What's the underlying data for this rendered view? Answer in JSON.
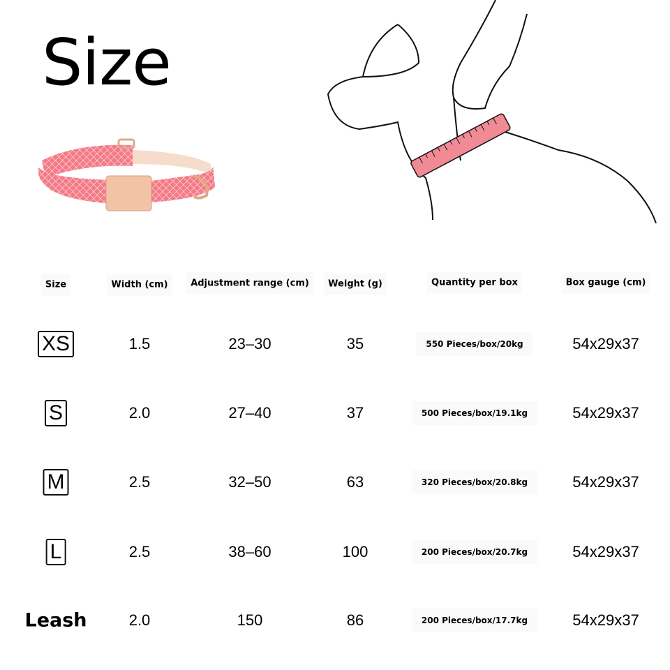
{
  "title": "Size",
  "table": {
    "headers": [
      "Size",
      "Width (cm)",
      "Adjustment range (cm)",
      "Weight (g)",
      "Quantity per box",
      "Box gauge (cm)"
    ],
    "rows": [
      {
        "size": "XS",
        "width": "1.5",
        "range": "23–30",
        "weight": "35",
        "quantity": "550 Pieces/box/20kg",
        "box": "54x29x37"
      },
      {
        "size": "S",
        "width": "2.0",
        "range": "27–40",
        "weight": "37",
        "quantity": "500 Pieces/box/19.1kg",
        "box": "54x29x37"
      },
      {
        "size": "M",
        "width": "2.5",
        "range": "32–50",
        "weight": "63",
        "quantity": "320 Pieces/box/20.8kg",
        "box": "54x29x37"
      },
      {
        "size": "L",
        "width": "2.5",
        "range": "38–60",
        "weight": "100",
        "quantity": "200 Pieces/box/20.7kg",
        "box": "54x29x37"
      },
      {
        "size": "Leash",
        "width": "2.0",
        "range": "150",
        "weight": "86",
        "quantity": "200 Pieces/box/17.7kg",
        "box": "54x29x37"
      }
    ]
  },
  "colors": {
    "collar_pink": "#f47a86",
    "buckle": "#f3c3a8",
    "tape": "#f08a94"
  }
}
